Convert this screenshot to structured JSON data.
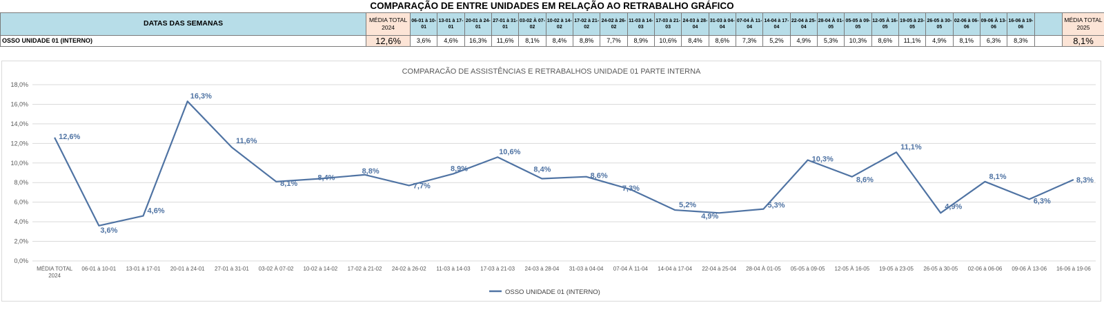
{
  "title": "COMPARAÇÃO DE ENTRE UNIDADES EM RELAÇÃO AO RETRABALHO GRÁFICO",
  "table": {
    "header_label": "DATAS DAS SEMANAS",
    "media_2024_label": "MÉDIA TOTAL 2024",
    "media_2025_label": "MÉDIA TOTAL 2025",
    "weeks": [
      "06-01 à 10-01",
      "13-01 à 17-01",
      "20-01 à 24-01",
      "27-01 à 31-01",
      "03-02 À 07-02",
      "10-02 à 14-02",
      "17-02 à 21-02",
      "24-02 à 26-02",
      "11-03 à 14-03",
      "17-03 à 21-03",
      "24-03 à 28-04",
      "31-03 à 04-04",
      "07-04 À 11-04",
      "14-04 à 17-04",
      "22-04 à 25-04",
      "28-04 À 01-05",
      "05-05 à 09-05",
      "12-05 À 16-05",
      "19-05 à 23-05",
      "26-05 à 30-05",
      "02-06 à 06-06",
      "09-06 À 13-06",
      "16-06 à 19-06"
    ],
    "row_label": "OSSO UNIDADE 01 (INTERNO)",
    "media_2024_value": "12,6%",
    "values": [
      "3,6%",
      "4,6%",
      "16,3%",
      "11,6%",
      "8,1%",
      "8,4%",
      "8,8%",
      "7,7%",
      "8,9%",
      "10,6%",
      "8,4%",
      "8,6%",
      "7,3%",
      "5,2%",
      "4,9%",
      "5,3%",
      "10,3%",
      "8,6%",
      "11,1%",
      "4,9%",
      "8,1%",
      "6,3%",
      "8,3%"
    ],
    "blank_value": "",
    "media_2025_value": "8,1%"
  },
  "chart_data": {
    "type": "line",
    "title": "COMPARACÃO DE ASSISTÊNCIAS E RETRABALHOS UNIDADE 01 PARTE INTERNA",
    "categories": [
      "MÉDIA TOTAL 2024",
      "06-01 à 10-01",
      "13-01 à 17-01",
      "20-01 à 24-01",
      "27-01 à 31-01",
      "03-02 À 07-02",
      "10-02 à 14-02",
      "17-02 à 21-02",
      "24-02 à 26-02",
      "11-03 à 14-03",
      "17-03 à 21-03",
      "24-03 à 28-04",
      "31-03 à 04-04",
      "07-04 À 11-04",
      "14-04 à 17-04",
      "22-04 à 25-04",
      "28-04 À 01-05",
      "05-05 à 09-05",
      "12-05 À 16-05",
      "19-05 à 23-05",
      "26-05 à 30-05",
      "02-06 à 06-06",
      "09-06 À 13-06",
      "16-06 à 19-06"
    ],
    "series": [
      {
        "name": "OSSO UNIDADE 01 (INTERNO)",
        "values": [
          12.6,
          3.6,
          4.6,
          16.3,
          11.6,
          8.1,
          8.4,
          8.8,
          7.7,
          8.9,
          10.6,
          8.4,
          8.6,
          7.3,
          5.2,
          4.9,
          5.3,
          10.3,
          8.6,
          11.1,
          4.9,
          8.1,
          6.3,
          8.3
        ],
        "labels": [
          "12,6%",
          "3,6%",
          "4,6%",
          "16,3%",
          "11,6%",
          "8,1%",
          "8,4%",
          "8,8%",
          "7,7%",
          "8,9%",
          "10,6%",
          "8,4%",
          "8,6%",
          "7,3%",
          "5,2%",
          "4,9%",
          "5,3%",
          "10,3%",
          "8,6%",
          "11,1%",
          "4,9%",
          "8,1%",
          "6,3%",
          "8,3%"
        ],
        "color": "#4f73a3"
      }
    ],
    "ylim": [
      0,
      18
    ],
    "yticks": [
      "0,0%",
      "2,0%",
      "4,0%",
      "6,0%",
      "8,0%",
      "10,0%",
      "12,0%",
      "14,0%",
      "16,0%",
      "18,0%"
    ],
    "grid": true,
    "legend": "bottom",
    "xlabel": "",
    "ylabel": ""
  }
}
